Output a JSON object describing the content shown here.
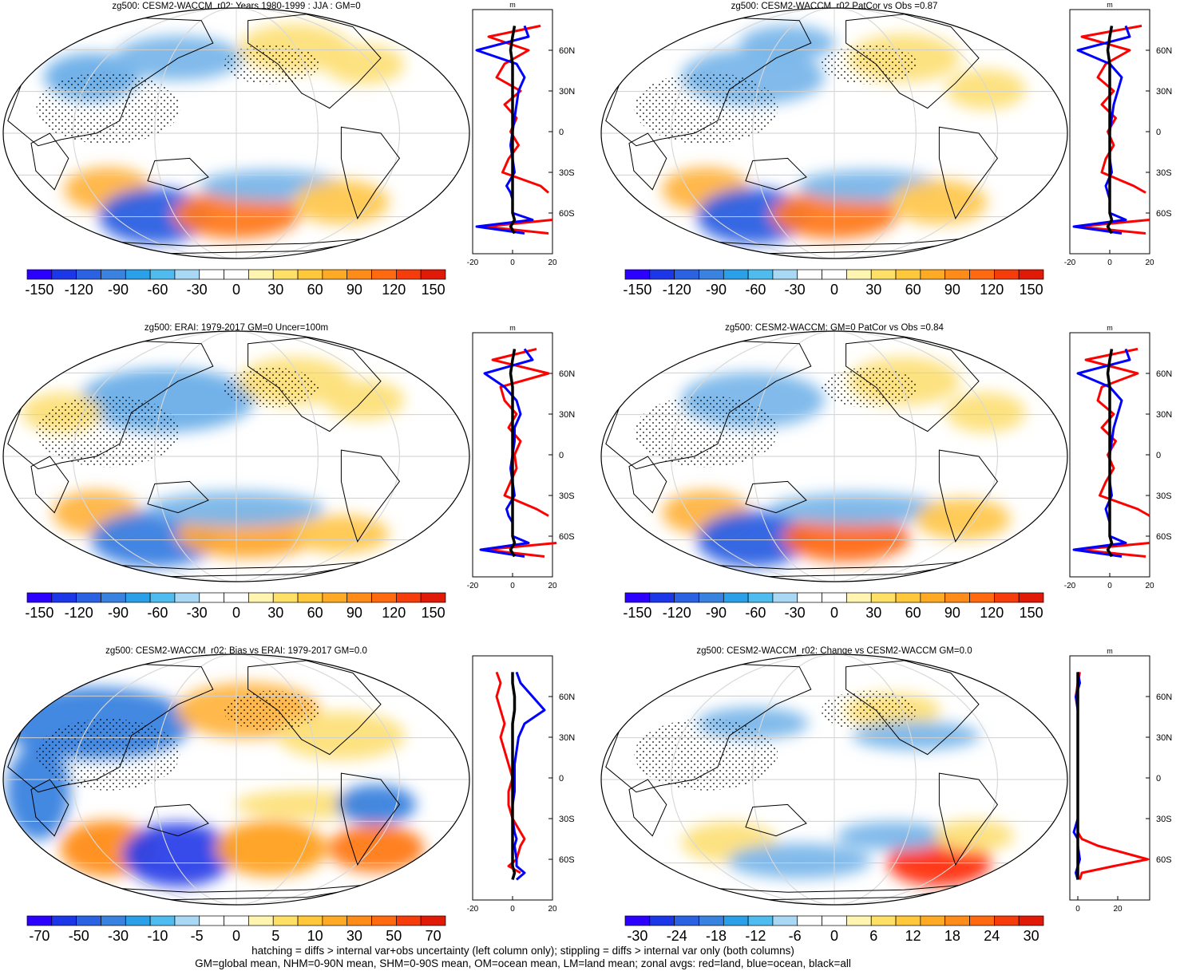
{
  "figure": {
    "footer_line1": "hatching = diffs > internal var+obs uncertainty (left column only); stippling = diffs > internal var only (both columns)",
    "footer_line2": "GM=global mean, NHM=0-90N mean, SHM=0-90S mean, OM=ocean mean, LM=land mean; zonal avgs: red=land, blue=ocean, black=all"
  },
  "colors": {
    "land": "#ff0000",
    "ocean": "#0000ff",
    "all": "#000000"
  },
  "chart_data": [
    {
      "type": "heatmap",
      "title": "zg500: CESM2-WACCM_r02: Years 1980-1999 : JJA : GM=0",
      "colorbar_labels": [
        "-150",
        "-120",
        "-90",
        "-60",
        "-30",
        "0",
        "30",
        "60",
        "90",
        "120",
        "150"
      ],
      "colorbar_colors": [
        "#2b00ff",
        "#1c37e8",
        "#2b62e2",
        "#3a82df",
        "#2aa0e8",
        "#4fbbef",
        "#a8d8f4",
        "#ffffff",
        "#ffffff",
        "#fff5b0",
        "#ffe066",
        "#ffc83a",
        "#ffaa25",
        "#ff8c18",
        "#ff6a10",
        "#f63c0a",
        "#e01a06"
      ],
      "profile": {
        "unit": "m",
        "xticks": [
          "-20",
          "0",
          "20"
        ],
        "xlim": [
          -20,
          20
        ],
        "yticks": [
          "60N",
          "30N",
          "0",
          "30S",
          "60S"
        ],
        "lat": [
          78,
          70,
          60,
          50,
          40,
          30,
          20,
          10,
          0,
          -10,
          -20,
          -30,
          -40,
          -45,
          -50,
          -60,
          -65,
          -70,
          -75
        ],
        "land": [
          14,
          -12,
          8,
          -4,
          -8,
          4,
          -4,
          2,
          -1,
          3,
          -2,
          -5,
          14,
          18,
          null,
          null,
          20,
          -14,
          18
        ],
        "ocean": [
          6,
          8,
          -18,
          2,
          6,
          3,
          2,
          1,
          0,
          -1,
          0,
          1,
          -3,
          -1,
          0,
          0,
          10,
          -18,
          6
        ],
        "all": [
          1,
          0,
          -1,
          0,
          0,
          0,
          0,
          0,
          0,
          0,
          0,
          0,
          0,
          0,
          0,
          0,
          1,
          -1,
          1
        ]
      }
    },
    {
      "type": "heatmap",
      "title": "zg500: CESM2-WACCM_r02 PatCor vs Obs =0.87",
      "colorbar_labels": [
        "-150",
        "-120",
        "-90",
        "-60",
        "-30",
        "0",
        "30",
        "60",
        "90",
        "120",
        "150"
      ],
      "colorbar_colors": [
        "#2b00ff",
        "#1c37e8",
        "#2b62e2",
        "#3a82df",
        "#2aa0e8",
        "#4fbbef",
        "#a8d8f4",
        "#ffffff",
        "#ffffff",
        "#fff5b0",
        "#ffe066",
        "#ffc83a",
        "#ffaa25",
        "#ff8c18",
        "#ff6a10",
        "#f63c0a",
        "#e01a06"
      ],
      "profile": {
        "unit": "m",
        "xticks": [
          "-20",
          "0",
          "20"
        ],
        "xlim": [
          -20,
          20
        ],
        "yticks": [
          "60N",
          "30N",
          "0",
          "30S",
          "60S"
        ],
        "lat": [
          78,
          70,
          60,
          50,
          40,
          30,
          20,
          10,
          0,
          -10,
          -20,
          -30,
          -40,
          -45,
          -50,
          -60,
          -65,
          -70,
          -75
        ],
        "land": [
          16,
          -14,
          10,
          -2,
          -6,
          2,
          -4,
          3,
          -1,
          2,
          -2,
          -4,
          12,
          18,
          null,
          null,
          20,
          -16,
          18
        ],
        "ocean": [
          8,
          10,
          -16,
          0,
          6,
          4,
          2,
          1,
          0,
          0,
          0,
          1,
          -2,
          -1,
          0,
          0,
          8,
          -18,
          6
        ],
        "all": [
          1,
          0,
          -1,
          0,
          0,
          0,
          0,
          0,
          0,
          0,
          0,
          0,
          0,
          0,
          0,
          0,
          1,
          -1,
          1
        ]
      }
    },
    {
      "type": "heatmap",
      "title": "zg500: ERAI: 1979-2017 GM=0 Uncer=100m",
      "colorbar_labels": [
        "-150",
        "-120",
        "-90",
        "-60",
        "-30",
        "0",
        "30",
        "60",
        "90",
        "120",
        "150"
      ],
      "colorbar_colors": [
        "#2b00ff",
        "#1c37e8",
        "#2b62e2",
        "#3a82df",
        "#2aa0e8",
        "#4fbbef",
        "#a8d8f4",
        "#ffffff",
        "#ffffff",
        "#fff5b0",
        "#ffe066",
        "#ffc83a",
        "#ffaa25",
        "#ff8c18",
        "#ff6a10",
        "#f63c0a",
        "#e01a06"
      ],
      "profile": {
        "unit": "m",
        "xticks": [
          "-20",
          "0",
          "20"
        ],
        "xlim": [
          -20,
          20
        ],
        "yticks": [
          "60N",
          "30N",
          "0",
          "30S",
          "60S"
        ],
        "lat": [
          78,
          70,
          60,
          50,
          40,
          30,
          20,
          10,
          0,
          -10,
          -20,
          -30,
          -40,
          -45,
          -50,
          -60,
          -65,
          -70,
          -75
        ],
        "land": [
          12,
          -10,
          18,
          -6,
          -4,
          2,
          -2,
          4,
          1,
          2,
          -1,
          -4,
          12,
          18,
          null,
          null,
          22,
          -14,
          16
        ],
        "ocean": [
          6,
          10,
          -14,
          -4,
          2,
          4,
          1,
          1,
          0,
          -1,
          0,
          1,
          -3,
          -2,
          0,
          0,
          8,
          -16,
          6
        ],
        "all": [
          1,
          0,
          -1,
          0,
          0,
          0,
          0,
          0,
          0,
          0,
          0,
          0,
          0,
          0,
          0,
          0,
          1,
          -1,
          1
        ]
      }
    },
    {
      "type": "heatmap",
      "title": "zg500: CESM2-WACCM: GM=0 PatCor vs Obs =0.84",
      "colorbar_labels": [
        "-150",
        "-120",
        "-90",
        "-60",
        "-30",
        "0",
        "30",
        "60",
        "90",
        "120",
        "150"
      ],
      "colorbar_colors": [
        "#2b00ff",
        "#1c37e8",
        "#2b62e2",
        "#3a82df",
        "#2aa0e8",
        "#4fbbef",
        "#a8d8f4",
        "#ffffff",
        "#ffffff",
        "#fff5b0",
        "#ffe066",
        "#ffc83a",
        "#ffaa25",
        "#ff8c18",
        "#ff6a10",
        "#f63c0a",
        "#e01a06"
      ],
      "profile": {
        "unit": "m",
        "xticks": [
          "-20",
          "0",
          "20"
        ],
        "xlim": [
          -20,
          20
        ],
        "yticks": [
          "60N",
          "30N",
          "0",
          "30S",
          "60S"
        ],
        "lat": [
          78,
          70,
          60,
          50,
          40,
          30,
          20,
          10,
          0,
          -10,
          -20,
          -30,
          -40,
          -45,
          -50,
          -60,
          -65,
          -70,
          -75
        ],
        "land": [
          14,
          -12,
          14,
          -4,
          -6,
          2,
          -4,
          3,
          -1,
          2,
          -2,
          -5,
          14,
          20,
          null,
          null,
          20,
          -16,
          18
        ],
        "ocean": [
          8,
          10,
          -16,
          0,
          6,
          4,
          2,
          1,
          0,
          0,
          0,
          1,
          -2,
          -1,
          0,
          0,
          8,
          -18,
          6
        ],
        "all": [
          1,
          0,
          -1,
          0,
          0,
          0,
          0,
          0,
          0,
          0,
          0,
          0,
          0,
          0,
          0,
          0,
          1,
          -1,
          1
        ]
      }
    },
    {
      "type": "heatmap",
      "title": "zg500: CESM2-WACCM_r02: Bias vs ERAI: 1979-2017 GM=0.0",
      "colorbar_labels": [
        "-70",
        "-50",
        "-30",
        "-10",
        "-5",
        "0",
        "5",
        "10",
        "30",
        "50",
        "70"
      ],
      "colorbar_colors": [
        "#2b00ff",
        "#1c37e8",
        "#2b62e2",
        "#3a82df",
        "#2aa0e8",
        "#4fbbef",
        "#a8d8f4",
        "#ffffff",
        "#ffffff",
        "#fff5b0",
        "#ffe066",
        "#ffc83a",
        "#ffaa25",
        "#ff8c18",
        "#ff6a10",
        "#f63c0a",
        "#e01a06"
      ],
      "profile": {
        "unit": "",
        "xticks": [
          "-20",
          "0",
          "20"
        ],
        "xlim": [
          -20,
          20
        ],
        "yticks": [
          "60N",
          "30N",
          "0",
          "30S",
          "60S"
        ],
        "lat": [
          78,
          70,
          60,
          50,
          40,
          30,
          20,
          10,
          0,
          -10,
          -20,
          -30,
          -40,
          -45,
          -50,
          -60,
          -65,
          -70,
          -75
        ],
        "land": [
          -8,
          -6,
          -8,
          -6,
          -4,
          -6,
          -4,
          -2,
          0,
          -2,
          -2,
          0,
          4,
          6,
          4,
          2,
          -2,
          4,
          null
        ],
        "ocean": [
          2,
          4,
          10,
          16,
          6,
          3,
          2,
          1,
          1,
          1,
          0,
          0,
          1,
          2,
          1,
          2,
          2,
          6,
          2
        ],
        "all": [
          0,
          0,
          1,
          1,
          0,
          0,
          0,
          0,
          0,
          0,
          0,
          0,
          0,
          0,
          0,
          0,
          0,
          1,
          0
        ]
      }
    },
    {
      "type": "heatmap",
      "title": "zg500: CESM2-WACCM_r02: Change vs CESM2-WACCM GM=0.0",
      "colorbar_labels": [
        "-30",
        "-24",
        "-18",
        "-12",
        "-6",
        "0",
        "6",
        "12",
        "18",
        "24",
        "30"
      ],
      "colorbar_colors": [
        "#2b00ff",
        "#1c37e8",
        "#2b62e2",
        "#3a82df",
        "#2aa0e8",
        "#4fbbef",
        "#a8d8f4",
        "#ffffff",
        "#ffffff",
        "#fff5b0",
        "#ffe066",
        "#ffc83a",
        "#ffaa25",
        "#ff8c18",
        "#ff6a10",
        "#f63c0a",
        "#e01a06"
      ],
      "profile": {
        "unit": "m",
        "xticks": [
          "0",
          "20"
        ],
        "xlim": [
          -4,
          36
        ],
        "yticks": [
          "60N",
          "30N",
          "0",
          "30S",
          "60S"
        ],
        "lat": [
          78,
          70,
          60,
          50,
          40,
          30,
          20,
          10,
          0,
          -10,
          -20,
          -30,
          -40,
          -45,
          -50,
          -60,
          -65,
          -70,
          -75
        ],
        "land": [
          1,
          0,
          -1,
          0,
          0,
          0,
          0,
          0,
          0,
          0,
          0,
          0,
          0,
          2,
          10,
          35,
          18,
          2,
          1
        ],
        "ocean": [
          0,
          1,
          -1,
          0,
          0,
          0,
          0,
          0,
          0,
          0,
          0,
          0,
          -2,
          0,
          0,
          1,
          0,
          -1,
          0
        ],
        "all": [
          0,
          0,
          0,
          0,
          0,
          0,
          0,
          0,
          0,
          0,
          0,
          0,
          0,
          0,
          0,
          0,
          0,
          0,
          0
        ]
      }
    }
  ]
}
